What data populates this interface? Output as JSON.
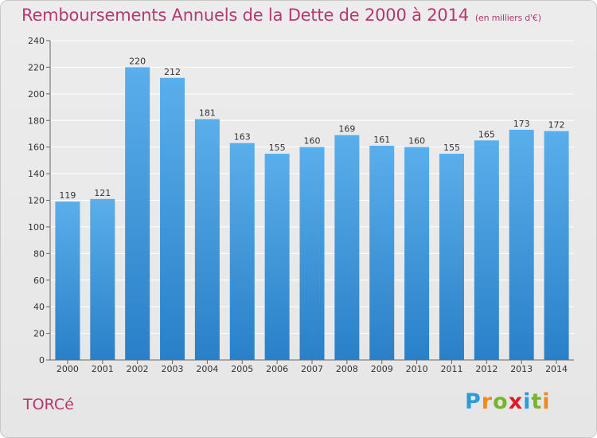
{
  "title": "Remboursements Annuels de la Dette de 2000 à 2014",
  "subtitle": "(en milliers d'€)",
  "commune": "TORCé",
  "logo": {
    "text": "Proxiti",
    "letters": [
      "P",
      "r",
      "o",
      "x",
      "i",
      "t",
      "i"
    ],
    "colors": [
      "#2f9ad8",
      "#f08a1c",
      "#79b52c",
      "#e0192a",
      "#2f9ad8",
      "#79b52c",
      "#f08a1c"
    ]
  },
  "colors": {
    "title": "#b5386f",
    "bar_top": "#5aaeea",
    "bar_bottom": "#2a80c8",
    "grid": "#ffffff",
    "background": "#e8e8e8"
  },
  "chart_data": {
    "type": "bar",
    "categories": [
      "2000",
      "2001",
      "2002",
      "2003",
      "2004",
      "2005",
      "2006",
      "2007",
      "2008",
      "2009",
      "2010",
      "2011",
      "2012",
      "2013",
      "2014"
    ],
    "values": [
      119,
      121,
      220,
      212,
      181,
      163,
      155,
      160,
      169,
      161,
      160,
      155,
      165,
      173,
      172
    ],
    "yticks": [
      "0",
      "20",
      "40",
      "60",
      "80",
      "100",
      "120",
      "140",
      "160",
      "180",
      "200",
      "220",
      "240"
    ],
    "ylim": [
      0,
      240
    ],
    "grid": true
  }
}
